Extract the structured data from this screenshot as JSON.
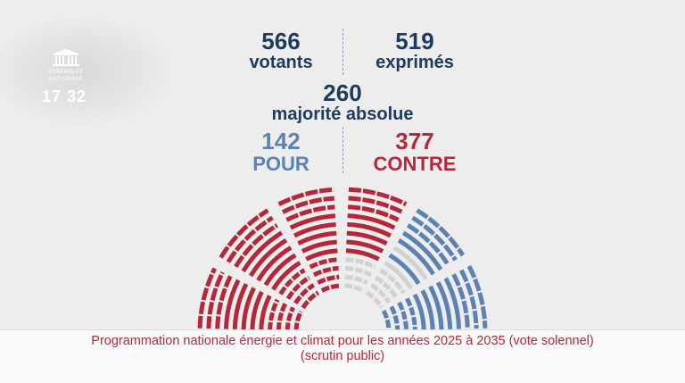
{
  "logo": {
    "name_line1": "ASSEMBLÉE",
    "name_line2": "NATIONALE",
    "icon": "assemblee-nationale-building-icon"
  },
  "time": "17 32",
  "votants": {
    "value": "566",
    "label": "votants"
  },
  "exprimes": {
    "value": "519",
    "label": "exprimés"
  },
  "majorite": {
    "value": "260",
    "label": "majorité absolue"
  },
  "pour": {
    "value": "142",
    "label": "POUR"
  },
  "contre": {
    "value": "377",
    "label": "CONTRE"
  },
  "colors": {
    "pour": "#5b82b3",
    "contre": "#b3283a",
    "abstention": "#d2d2d2",
    "text": "#1e3a5f"
  },
  "hemicycle": {
    "pour": 142,
    "contre": 377,
    "non_votants": 47
  },
  "footer": {
    "line1": "Programmation nationale énergie et climat pour les années 2025 à 2035 (vote solennel)",
    "line2": "(scrutin public)"
  }
}
